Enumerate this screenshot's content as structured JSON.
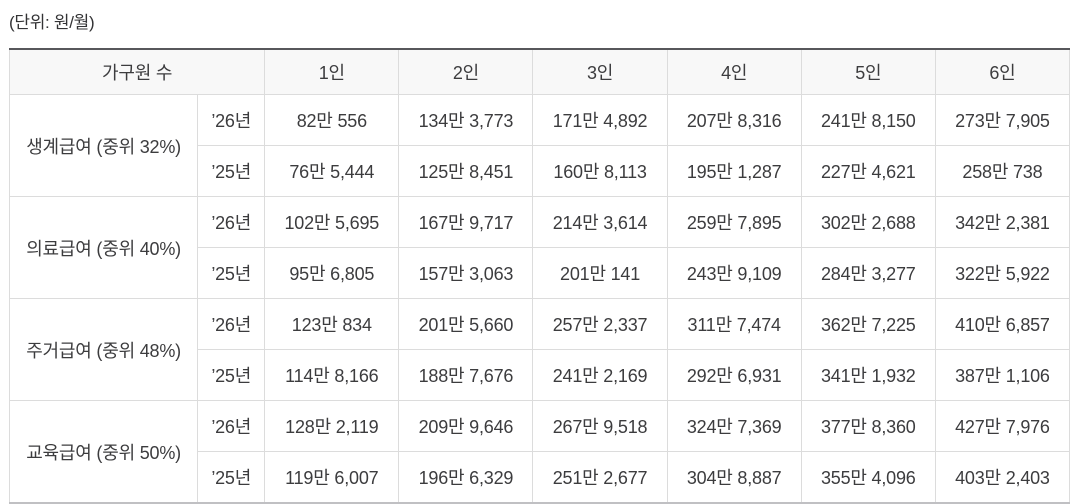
{
  "unit_label": "(단위: 원/월)",
  "colors": {
    "top_border": "#57575b",
    "bottom_border": "#c0c0c3",
    "cell_border": "#dcdcdc",
    "header_bg": "#f8f8f8",
    "text": "#3c3c3e"
  },
  "table": {
    "header": {
      "household_label": "가구원 수",
      "columns": [
        "1인",
        "2인",
        "3인",
        "4인",
        "5인",
        "6인"
      ]
    },
    "groups": [
      {
        "category": "생계급여 (중위 32%)",
        "rows": [
          {
            "year": "’26년",
            "values": [
              "82만 556",
              "134만 3,773",
              "171만 4,892",
              "207만 8,316",
              "241만 8,150",
              "273만 7,905"
            ]
          },
          {
            "year": "’25년",
            "values": [
              "76만 5,444",
              "125만 8,451",
              "160만 8,113",
              "195만 1,287",
              "227만 4,621",
              "258만 738"
            ]
          }
        ]
      },
      {
        "category": "의료급여 (중위 40%)",
        "rows": [
          {
            "year": "’26년",
            "values": [
              "102만 5,695",
              "167만 9,717",
              "214만 3,614",
              "259만 7,895",
              "302만 2,688",
              "342만 2,381"
            ]
          },
          {
            "year": "’25년",
            "values": [
              "95만 6,805",
              "157만 3,063",
              "201만 141",
              "243만 9,109",
              "284만 3,277",
              "322만 5,922"
            ]
          }
        ]
      },
      {
        "category": "주거급여 (중위 48%)",
        "rows": [
          {
            "year": "’26년",
            "values": [
              "123만 834",
              "201만 5,660",
              "257만 2,337",
              "311만 7,474",
              "362만 7,225",
              "410만 6,857"
            ]
          },
          {
            "year": "’25년",
            "values": [
              "114만 8,166",
              "188만 7,676",
              "241만 2,169",
              "292만 6,931",
              "341만 1,932",
              "387만 1,106"
            ]
          }
        ]
      },
      {
        "category": "교육급여 (중위 50%)",
        "rows": [
          {
            "year": "’26년",
            "values": [
              "128만 2,119",
              "209만 9,646",
              "267만 9,518",
              "324만 7,369",
              "377만 8,360",
              "427만 7,976"
            ]
          },
          {
            "year": "’25년",
            "values": [
              "119만 6,007",
              "196만 6,329",
              "251만 2,677",
              "304만 8,887",
              "355만 4,096",
              "403만 2,403"
            ]
          }
        ]
      }
    ]
  }
}
